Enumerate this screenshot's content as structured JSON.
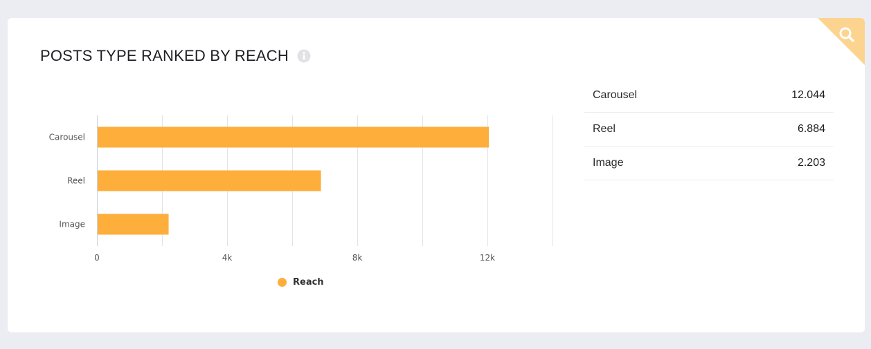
{
  "card": {
    "title": "POSTS TYPE RANKED BY REACH",
    "info_icon": "info-icon",
    "corner_icon": "search-icon"
  },
  "colors": {
    "accent": "#fdae3b",
    "corner": "#fcd38f",
    "grid": "#e3e3e8"
  },
  "chart_data": {
    "type": "bar",
    "orientation": "horizontal",
    "categories": [
      "Carousel",
      "Reel",
      "Image"
    ],
    "series": [
      {
        "name": "Reach",
        "values": [
          12044,
          6884,
          2203
        ]
      }
    ],
    "xlim": [
      0,
      14000
    ],
    "xticks": [
      {
        "value": 0,
        "label": "0"
      },
      {
        "value": 4000,
        "label": "4k"
      },
      {
        "value": 8000,
        "label": "8k"
      },
      {
        "value": 12000,
        "label": "12k"
      }
    ],
    "grid": true,
    "legend": "bottom-center"
  },
  "legend": {
    "label": "Reach"
  },
  "table": {
    "rows": [
      {
        "label": "Carousel",
        "value": "12.044"
      },
      {
        "label": "Reel",
        "value": "6.884"
      },
      {
        "label": "Image",
        "value": "2.203"
      }
    ]
  }
}
